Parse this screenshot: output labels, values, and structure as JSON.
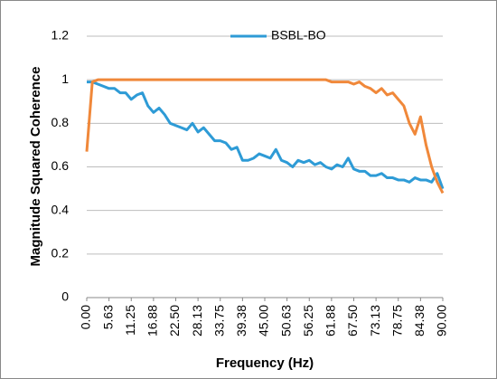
{
  "chart_data": {
    "type": "line",
    "xlabel": "Frequency (Hz)",
    "ylabel": "Magnitude Squared Coherence",
    "x": [
      0,
      1.40625,
      2.8125,
      4.21875,
      5.625,
      7.03125,
      8.4375,
      9.84375,
      11.25,
      12.65625,
      14.0625,
      15.46875,
      16.875,
      18.28125,
      19.6875,
      21.09375,
      22.5,
      23.90625,
      25.3125,
      26.71875,
      28.125,
      29.53125,
      30.9375,
      32.34375,
      33.75,
      35.15625,
      36.5625,
      37.96875,
      39.375,
      40.78125,
      42.1875,
      43.59375,
      45,
      46.40625,
      47.8125,
      49.21875,
      50.625,
      52.03125,
      53.4375,
      54.84375,
      56.25,
      57.65625,
      59.0625,
      60.46875,
      61.875,
      63.28125,
      64.6875,
      66.09375,
      67.5,
      68.90625,
      70.3125,
      71.71875,
      73.125,
      74.53125,
      75.9375,
      77.34375,
      78.75,
      80.15625,
      81.5625,
      82.96875,
      84.375,
      85.78125,
      87.1875,
      88.59375,
      90
    ],
    "series": [
      {
        "name": "BSBL-BO",
        "color": "#2e9bd6",
        "values": [
          0.99,
          0.99,
          0.98,
          0.97,
          0.96,
          0.96,
          0.94,
          0.94,
          0.91,
          0.93,
          0.94,
          0.88,
          0.85,
          0.87,
          0.84,
          0.8,
          0.79,
          0.78,
          0.77,
          0.8,
          0.76,
          0.78,
          0.75,
          0.72,
          0.72,
          0.71,
          0.68,
          0.69,
          0.63,
          0.63,
          0.64,
          0.66,
          0.65,
          0.64,
          0.68,
          0.63,
          0.62,
          0.6,
          0.63,
          0.62,
          0.63,
          0.61,
          0.62,
          0.6,
          0.59,
          0.61,
          0.6,
          0.64,
          0.59,
          0.58,
          0.58,
          0.56,
          0.56,
          0.57,
          0.55,
          0.55,
          0.54,
          0.54,
          0.53,
          0.55,
          0.54,
          0.54,
          0.53,
          0.57,
          0.5
        ]
      },
      {
        "color": "#f0883a",
        "values": [
          0.67,
          0.99,
          1,
          1,
          1,
          1,
          1,
          1,
          1,
          1,
          1,
          1,
          1,
          1,
          1,
          1,
          1,
          1,
          1,
          1,
          1,
          1,
          1,
          1,
          1,
          1,
          1,
          1,
          1,
          1,
          1,
          1,
          1,
          1,
          1,
          1,
          1,
          1,
          1,
          1,
          1,
          1,
          1,
          1,
          0.99,
          0.99,
          0.99,
          0.99,
          0.98,
          0.99,
          0.97,
          0.96,
          0.94,
          0.96,
          0.93,
          0.94,
          0.91,
          0.88,
          0.8,
          0.75,
          0.83,
          0.7,
          0.6,
          0.53,
          0.48
        ]
      }
    ],
    "xlim": [
      0,
      90
    ],
    "xticks": [
      {
        "value": 0,
        "label": "0.00"
      },
      {
        "value": 5.625,
        "label": "5.63"
      },
      {
        "value": 11.25,
        "label": "11.25"
      },
      {
        "value": 16.875,
        "label": "16.88"
      },
      {
        "value": 22.5,
        "label": "22.50"
      },
      {
        "value": 28.125,
        "label": "28.13"
      },
      {
        "value": 33.75,
        "label": "33.75"
      },
      {
        "value": 39.375,
        "label": "39.38"
      },
      {
        "value": 45,
        "label": "45.00"
      },
      {
        "value": 50.625,
        "label": "50.63"
      },
      {
        "value": 56.25,
        "label": "56.25"
      },
      {
        "value": 61.875,
        "label": "61.88"
      },
      {
        "value": 67.5,
        "label": "67.50"
      },
      {
        "value": 73.125,
        "label": "73.13"
      },
      {
        "value": 78.75,
        "label": "78.75"
      },
      {
        "value": 84.375,
        "label": "84.38"
      },
      {
        "value": 90,
        "label": "90.00"
      }
    ],
    "ylim": [
      0,
      1.2
    ],
    "yticks": [
      0,
      0.2,
      0.4,
      0.6,
      0.8,
      1,
      1.2
    ],
    "grid": true,
    "legend": "top"
  }
}
